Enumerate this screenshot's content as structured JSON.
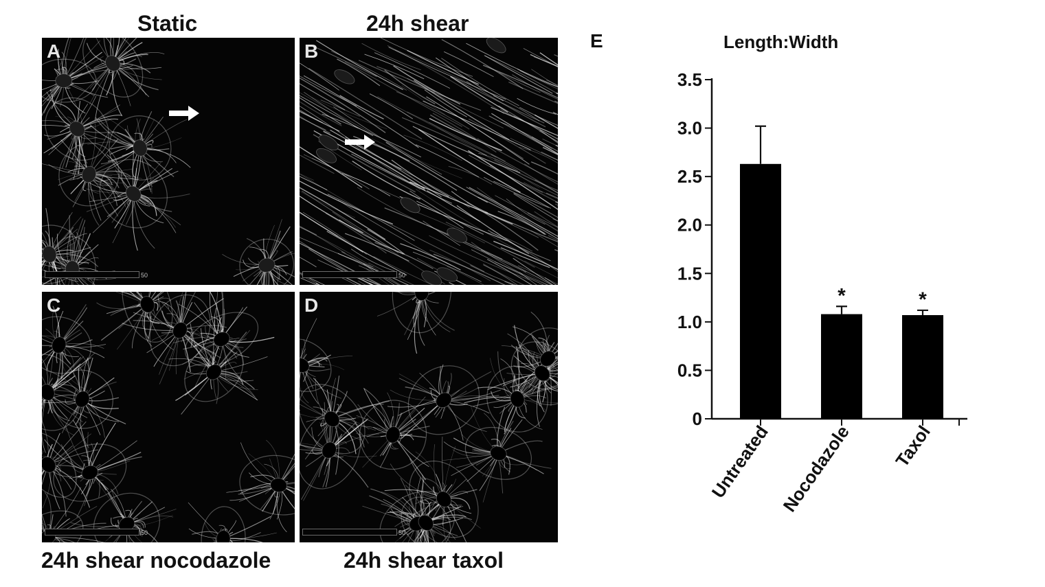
{
  "figure": {
    "panels": [
      {
        "letter": "A",
        "title": "Static",
        "title_position": "top",
        "arrow": true
      },
      {
        "letter": "B",
        "title": "24h shear",
        "title_position": "top",
        "arrow": true
      },
      {
        "letter": "C",
        "title": "24h shear nocodazole",
        "title_position": "bottom",
        "arrow": false
      },
      {
        "letter": "D",
        "title": "24h shear taxol",
        "title_position": "bottom",
        "arrow": false
      }
    ],
    "scale_bar_label": "50"
  },
  "chart_letter": "E",
  "chart_data": {
    "type": "bar",
    "title": "Length:Width",
    "categories": [
      "Untreated",
      "Nocodazole",
      "Taxol"
    ],
    "values": [
      2.63,
      1.08,
      1.07
    ],
    "errors": [
      0.39,
      0.08,
      0.05
    ],
    "significance": [
      "",
      "*",
      "*"
    ],
    "xlabel": "",
    "ylabel": "",
    "ylim": [
      0,
      3.5
    ],
    "yticks": [
      "0",
      "0.5",
      "1.0",
      "1.5",
      "2.0",
      "2.5",
      "3.0",
      "3.5"
    ],
    "ytick_values": [
      0,
      0.5,
      1.0,
      1.5,
      2.0,
      2.5,
      3.0,
      3.5
    ],
    "bar_color": "#000000",
    "grid": false,
    "legend": "none"
  }
}
